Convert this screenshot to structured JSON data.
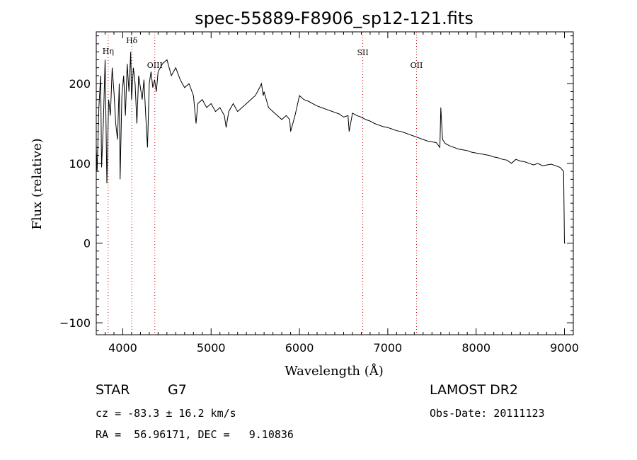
{
  "chart_data": {
    "type": "line",
    "title": "spec-55889-F8906_sp12-121.fits",
    "xlabel": "Wavelength (Å)",
    "ylabel": "Flux (relative)",
    "xlim": [
      3700,
      9100
    ],
    "ylim": [
      -115,
      265
    ],
    "x_ticks": [
      4000,
      5000,
      6000,
      7000,
      8000,
      9000
    ],
    "y_ticks": [
      -100,
      0,
      100,
      200
    ],
    "grid": false,
    "series": [
      {
        "x": [
          3700,
          3710,
          3730,
          3750,
          3760,
          3780,
          3800,
          3820,
          3840,
          3860,
          3880,
          3900,
          3920,
          3940,
          3960,
          3970,
          3990,
          4010,
          4030,
          4050,
          4070,
          4090,
          4100,
          4120,
          4140,
          4160,
          4180,
          4200,
          4220,
          4240,
          4260,
          4280,
          4300,
          4320,
          4340,
          4360,
          4380,
          4400,
          4450,
          4500,
          4550,
          4600,
          4650,
          4700,
          4750,
          4800,
          4830,
          4850,
          4900,
          4950,
          5000,
          5050,
          5100,
          5150,
          5170,
          5200,
          5250,
          5300,
          5350,
          5400,
          5450,
          5500,
          5550,
          5570,
          5590,
          5600,
          5650,
          5700,
          5750,
          5800,
          5850,
          5890,
          5900,
          5950,
          6000,
          6050,
          6100,
          6150,
          6200,
          6250,
          6300,
          6350,
          6400,
          6450,
          6500,
          6550,
          6563,
          6600,
          6650,
          6700,
          6750,
          6800,
          6850,
          6900,
          6950,
          7000,
          7050,
          7100,
          7150,
          7200,
          7250,
          7300,
          7350,
          7400,
          7450,
          7500,
          7550,
          7590,
          7600,
          7620,
          7650,
          7700,
          7750,
          7800,
          7850,
          7900,
          7950,
          8000,
          8050,
          8100,
          8150,
          8200,
          8250,
          8300,
          8350,
          8400,
          8450,
          8500,
          8550,
          8600,
          8650,
          8700,
          8750,
          8800,
          8850,
          8900,
          8950,
          8990,
          9000,
          9010
        ],
        "y": [
          120,
          90,
          170,
          210,
          95,
          150,
          230,
          75,
          180,
          160,
          220,
          190,
          150,
          130,
          200,
          80,
          185,
          210,
          160,
          225,
          190,
          240,
          180,
          220,
          200,
          150,
          210,
          195,
          180,
          205,
          160,
          120,
          200,
          215,
          195,
          205,
          190,
          215,
          225,
          230,
          210,
          220,
          205,
          195,
          200,
          185,
          150,
          175,
          180,
          170,
          175,
          165,
          170,
          160,
          145,
          165,
          175,
          165,
          170,
          175,
          180,
          185,
          195,
          200,
          185,
          190,
          170,
          165,
          160,
          155,
          160,
          155,
          140,
          160,
          185,
          180,
          178,
          175,
          172,
          170,
          168,
          166,
          164,
          162,
          158,
          160,
          140,
          163,
          160,
          158,
          155,
          153,
          150,
          148,
          146,
          145,
          143,
          141,
          140,
          138,
          136,
          134,
          132,
          130,
          128,
          127,
          126,
          120,
          170,
          130,
          125,
          122,
          120,
          118,
          117,
          116,
          114,
          113,
          112,
          111,
          110,
          108,
          107,
          105,
          104,
          100,
          105,
          103,
          102,
          100,
          98,
          100,
          97,
          98,
          99,
          97,
          95,
          90,
          0,
          0
        ]
      }
    ],
    "reference_lines": [
      {
        "label": "Hη",
        "x": 3835
      },
      {
        "label": "Hδ",
        "x": 4102
      },
      {
        "label": "OIII",
        "x": 4363
      },
      {
        "label": "SII",
        "x": 6717
      },
      {
        "label": "OII",
        "x": 7325
      }
    ]
  },
  "info": {
    "object_type": "STAR",
    "subclass": "G7",
    "survey": "LAMOST DR2",
    "cz": "cz = -83.3 ± 16.2 km/s",
    "obs_date": "Obs-Date: 20111123",
    "coords": "RA =  56.96171, DEC =   9.10836"
  },
  "colors": {
    "spectrum": "#000000",
    "reference_line": "#cc0000",
    "axes": "#000000"
  }
}
